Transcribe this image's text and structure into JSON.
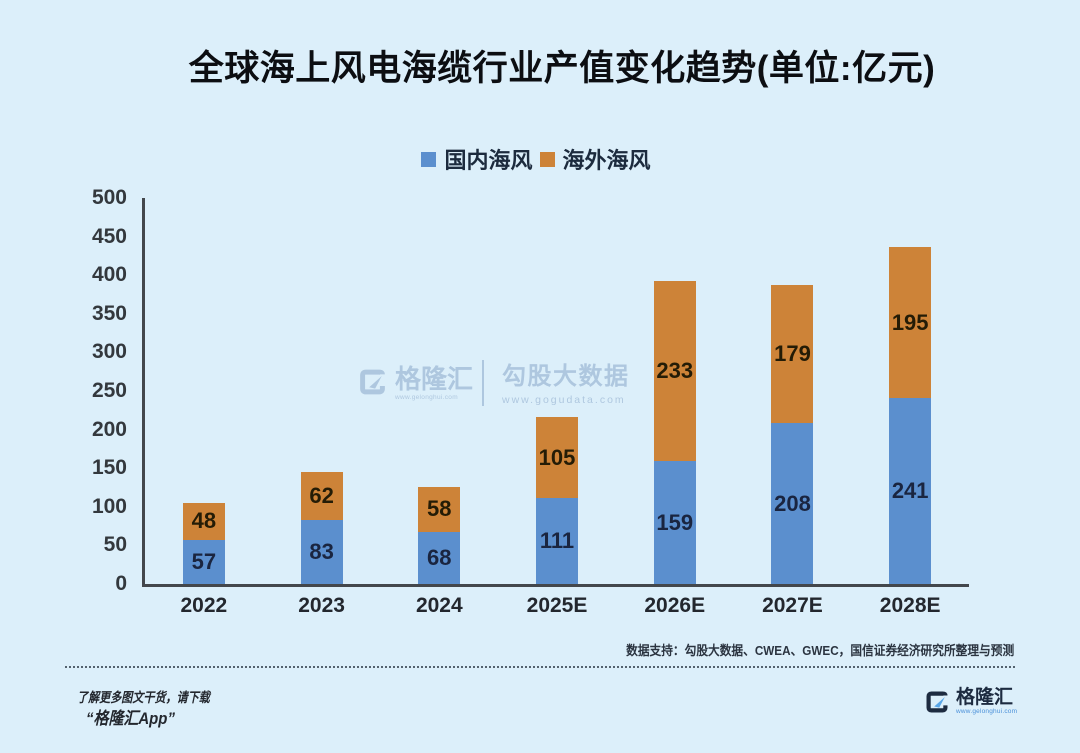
{
  "title": "全球海上风电海缆行业产值变化趋势(单位:亿元)",
  "chart_data": {
    "type": "bar",
    "stacked": true,
    "categories": [
      "2022",
      "2023",
      "2024",
      "2025E",
      "2026E",
      "2027E",
      "2028E"
    ],
    "series": [
      {
        "name": "国内海风",
        "color": "#5b8fce",
        "label_color": "#1a2540",
        "values": [
          57,
          83,
          68,
          111,
          159,
          208,
          241
        ]
      },
      {
        "name": "海外海风",
        "color": "#cd8338",
        "label_color": "#241c06",
        "values": [
          48,
          62,
          58,
          105,
          233,
          179,
          195
        ]
      }
    ],
    "title": "全球海上风电海缆行业产值变化趋势(单位:亿元)",
    "xlabel": "",
    "ylabel": "",
    "ylim": [
      0,
      500
    ],
    "ytick_step": 50,
    "grid": false,
    "legend_position": "top"
  },
  "legend": [
    {
      "label": "国内海风",
      "color": "#5b8fce"
    },
    {
      "label": "海外海风",
      "color": "#cd8338"
    }
  ],
  "watermark": {
    "brand": "格隆汇",
    "brand_url": "www.gelonghui.com",
    "product": "勾股大数据",
    "product_url": "www.gogudata.com"
  },
  "footer": {
    "source_note": "数据支持：勾股大数据、CWEA、GWEC，国信证券经济研究所整理与预测",
    "promo_line1": "了解更多图文干货，请下载",
    "promo_line2": "“格隆汇App”",
    "brand": "格隆汇",
    "brand_url": "www.gelonghui.com"
  },
  "colors": {
    "background": "#dceffa",
    "domestic": "#5b8fce",
    "overseas": "#cd8338",
    "axis": "#43474c",
    "watermark": "#7d9cc2"
  }
}
